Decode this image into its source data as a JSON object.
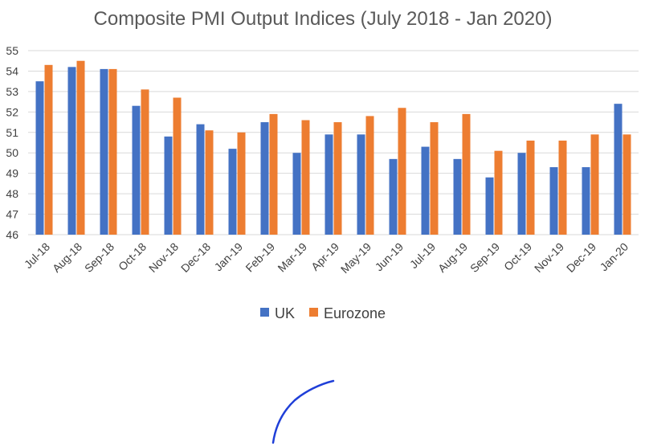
{
  "chart_data": {
    "type": "bar",
    "title": "Composite PMI Output Indices (July 2018 - Jan 2020)",
    "xlabel": "",
    "ylabel": "",
    "ylim": [
      46,
      55
    ],
    "yticks": [
      "46",
      "47",
      "48",
      "49",
      "50",
      "51",
      "52",
      "53",
      "54",
      "55"
    ],
    "grid": true,
    "legend_position": "bottom",
    "categories": [
      "Jul-18",
      "Aug-18",
      "Sep-18",
      "Oct-18",
      "Nov-18",
      "Dec-18",
      "Jan-19",
      "Feb-19",
      "Mar-19",
      "Apr-19",
      "May-19",
      "Jun-19",
      "Jul-19",
      "Aug-19",
      "Sep-19",
      "Oct-19",
      "Nov-19",
      "Dec-19",
      "Jan-20"
    ],
    "series": [
      {
        "name": "UK",
        "color": "#4472c4",
        "values": [
          53.5,
          54.2,
          54.1,
          52.3,
          50.8,
          51.4,
          50.2,
          51.5,
          50.0,
          50.9,
          50.9,
          49.7,
          50.3,
          49.7,
          48.8,
          50.0,
          49.3,
          49.3,
          52.4
        ]
      },
      {
        "name": "Eurozone",
        "color": "#ed7d31",
        "values": [
          54.3,
          54.5,
          54.1,
          53.1,
          52.7,
          51.1,
          51.0,
          51.9,
          51.6,
          51.5,
          51.8,
          52.2,
          51.5,
          51.9,
          50.1,
          50.6,
          50.6,
          50.9,
          50.9
        ]
      }
    ]
  },
  "annotation": {
    "type": "hand-drawn curve",
    "color": "#1f3fd8"
  }
}
